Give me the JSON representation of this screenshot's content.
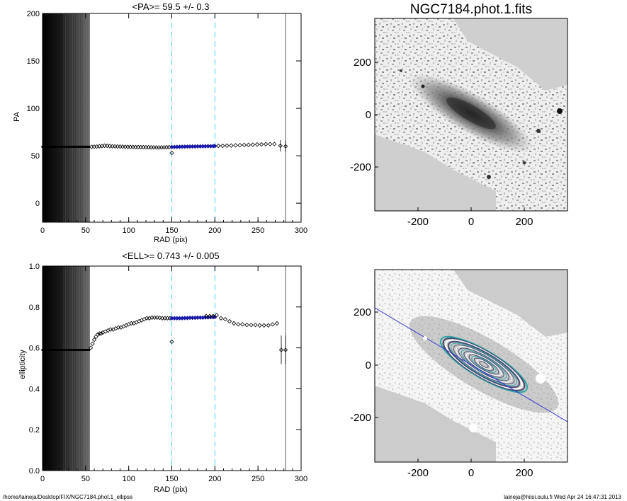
{
  "footer": {
    "path": "/home/laineja/Desktop/FIX/NGC7184.phot.1_ellipse",
    "stamp": "laineja@hiisi.oulu.fi  Wed Apr 24 16:47:31 2013"
  },
  "colors": {
    "inner_points": "#1a1aa8",
    "marker_lines": "#4fd6e6",
    "major_axis": "#3a3ad0",
    "contours": "#2fa6a6",
    "image_background": "#d2d2d2"
  },
  "images": [
    {
      "title": "NGC7184.phot.1.fits",
      "xticks": [
        "-200",
        "0",
        "200"
      ],
      "yticks": [
        "200",
        "0",
        "-200"
      ],
      "content": "galaxy-image"
    },
    {
      "title": "",
      "xticks": [
        "-200",
        "0",
        "200"
      ],
      "yticks": [
        "200",
        "0",
        "-200"
      ],
      "content": "ellipse-contour-overlay"
    }
  ],
  "chart_data": [
    {
      "type": "scatter",
      "title": "<PA>=  59.5 +/-   0.3",
      "xlabel": "RAD (pix)",
      "ylabel": "PA",
      "xlim": [
        0,
        300
      ],
      "ylim": [
        -20,
        200
      ],
      "xticks": [
        "0",
        "50",
        "100",
        "150",
        "200",
        "250",
        "300"
      ],
      "yticks": [
        "0",
        "50",
        "100",
        "150",
        "200"
      ],
      "grid": false,
      "mean": 59.5,
      "vlines": {
        "dashed": [
          150,
          200
        ],
        "solid": [
          282
        ]
      },
      "shaded_range": [
        0,
        55
      ],
      "series": [
        {
          "x": [
            0,
            2,
            4,
            6,
            8,
            10,
            12,
            14,
            16,
            18,
            20,
            22,
            24,
            26,
            28,
            30,
            32,
            34,
            36,
            38,
            40,
            42,
            44,
            46,
            48,
            50,
            52,
            54
          ],
          "y": [
            59.5,
            59.5,
            59.5,
            59.5,
            59.5,
            59.5,
            59.5,
            59.5,
            59.5,
            59.5,
            59.5,
            59.5,
            59.5,
            59.5,
            59.5,
            59.5,
            59.5,
            59.5,
            59.5,
            59.5,
            59.5,
            59.5,
            59.5,
            59.5,
            59.5,
            59.5,
            59.5,
            59.5
          ]
        },
        {
          "x": [
            57,
            60,
            63,
            66,
            69,
            72,
            75,
            78,
            81,
            84,
            87,
            90,
            93,
            96,
            99,
            102,
            105,
            108,
            111,
            114,
            117,
            120,
            123,
            126,
            129,
            132,
            135,
            138,
            141,
            144,
            147
          ],
          "y": [
            59.5,
            59.6,
            59.7,
            60.0,
            60.3,
            60.6,
            60.5,
            60.2,
            60.0,
            59.9,
            59.8,
            59.7,
            59.6,
            59.5,
            59.4,
            59.3,
            59.3,
            59.2,
            59.2,
            59.1,
            59.1,
            59.0,
            59.0,
            58.9,
            58.9,
            58.8,
            58.8,
            58.8,
            58.9,
            59.0,
            59.1
          ]
        },
        {
          "x": [
            150,
            153,
            156,
            159,
            162,
            165,
            168,
            171,
            174,
            177,
            180,
            183,
            186,
            189,
            192,
            195,
            198,
            200
          ],
          "y": [
            59.2,
            59.3,
            59.4,
            59.5,
            59.6,
            59.6,
            59.7,
            59.7,
            59.8,
            59.8,
            59.9,
            59.9,
            60.0,
            60.0,
            60.1,
            60.1,
            60.2,
            60.3
          ]
        },
        {
          "x": [
            150
          ],
          "y": [
            53
          ]
        },
        {
          "x": [
            204,
            209,
            214,
            219,
            224,
            229,
            234,
            239,
            244,
            249,
            254,
            259,
            264,
            269,
            276,
            282
          ],
          "y": [
            60.4,
            60.5,
            60.7,
            60.8,
            61.0,
            61.2,
            61.4,
            61.5,
            61.7,
            61.9,
            62.0,
            62.2,
            62.3,
            62.4,
            60.5,
            60.0
          ]
        }
      ]
    },
    {
      "type": "scatter",
      "title": "<ELL>= 0.743 +/-  0.005",
      "xlabel": "RAD (pix)",
      "ylabel": "ellipticity",
      "xlim": [
        0,
        300
      ],
      "ylim": [
        0.0,
        1.0
      ],
      "xticks": [
        "0",
        "50",
        "100",
        "150",
        "200",
        "250",
        "300"
      ],
      "yticks": [
        "0.0",
        "0.2",
        "0.4",
        "0.6",
        "0.8",
        "1.0"
      ],
      "grid": false,
      "mean": 0.743,
      "vlines": {
        "dashed": [
          150,
          200
        ],
        "solid": [
          282
        ]
      },
      "shaded_range": [
        0,
        55
      ],
      "series": [
        {
          "x": [
            0,
            2,
            4,
            6,
            8,
            10,
            12,
            14,
            16,
            18,
            20,
            22,
            24,
            26,
            28,
            30,
            32,
            34,
            36,
            38,
            40,
            42,
            44,
            46,
            48,
            50,
            52,
            54
          ],
          "y": [
            0.59,
            0.59,
            0.59,
            0.59,
            0.59,
            0.59,
            0.59,
            0.59,
            0.59,
            0.59,
            0.59,
            0.59,
            0.59,
            0.59,
            0.59,
            0.59,
            0.59,
            0.59,
            0.59,
            0.59,
            0.59,
            0.59,
            0.59,
            0.59,
            0.59,
            0.59,
            0.59,
            0.59
          ]
        },
        {
          "x": [
            56,
            58,
            60,
            62,
            64,
            66,
            68,
            70,
            73,
            76,
            79,
            82,
            85,
            88,
            91,
            94,
            97,
            100,
            103,
            106,
            109,
            112,
            115,
            118,
            121,
            124,
            127,
            130,
            133,
            136,
            139,
            142,
            145,
            148
          ],
          "y": [
            0.6,
            0.62,
            0.64,
            0.655,
            0.665,
            0.67,
            0.67,
            0.675,
            0.68,
            0.685,
            0.69,
            0.69,
            0.695,
            0.7,
            0.7,
            0.705,
            0.71,
            0.715,
            0.72,
            0.72,
            0.725,
            0.73,
            0.735,
            0.74,
            0.745,
            0.745,
            0.748,
            0.748,
            0.748,
            0.747,
            0.745,
            0.745,
            0.745,
            0.745
          ]
        },
        {
          "x": [
            150,
            153,
            156,
            159,
            162,
            165,
            168,
            171,
            174,
            177,
            180,
            183,
            186,
            189,
            192,
            195,
            198,
            200
          ],
          "y": [
            0.745,
            0.745,
            0.745,
            0.745,
            0.745,
            0.746,
            0.746,
            0.747,
            0.747,
            0.747,
            0.748,
            0.748,
            0.748,
            0.749,
            0.749,
            0.75,
            0.75,
            0.751
          ]
        },
        {
          "x": [
            150
          ],
          "y": [
            0.63
          ]
        },
        {
          "x": [
            190,
            194,
            198,
            202,
            207,
            212,
            217,
            222,
            227,
            232,
            237,
            242,
            247,
            252,
            257,
            262,
            267,
            272,
            277,
            282
          ],
          "y": [
            0.755,
            0.755,
            0.755,
            0.76,
            0.745,
            0.74,
            0.73,
            0.72,
            0.715,
            0.715,
            0.712,
            0.712,
            0.712,
            0.71,
            0.71,
            0.71,
            0.715,
            0.72,
            0.59,
            0.59
          ]
        }
      ]
    }
  ]
}
